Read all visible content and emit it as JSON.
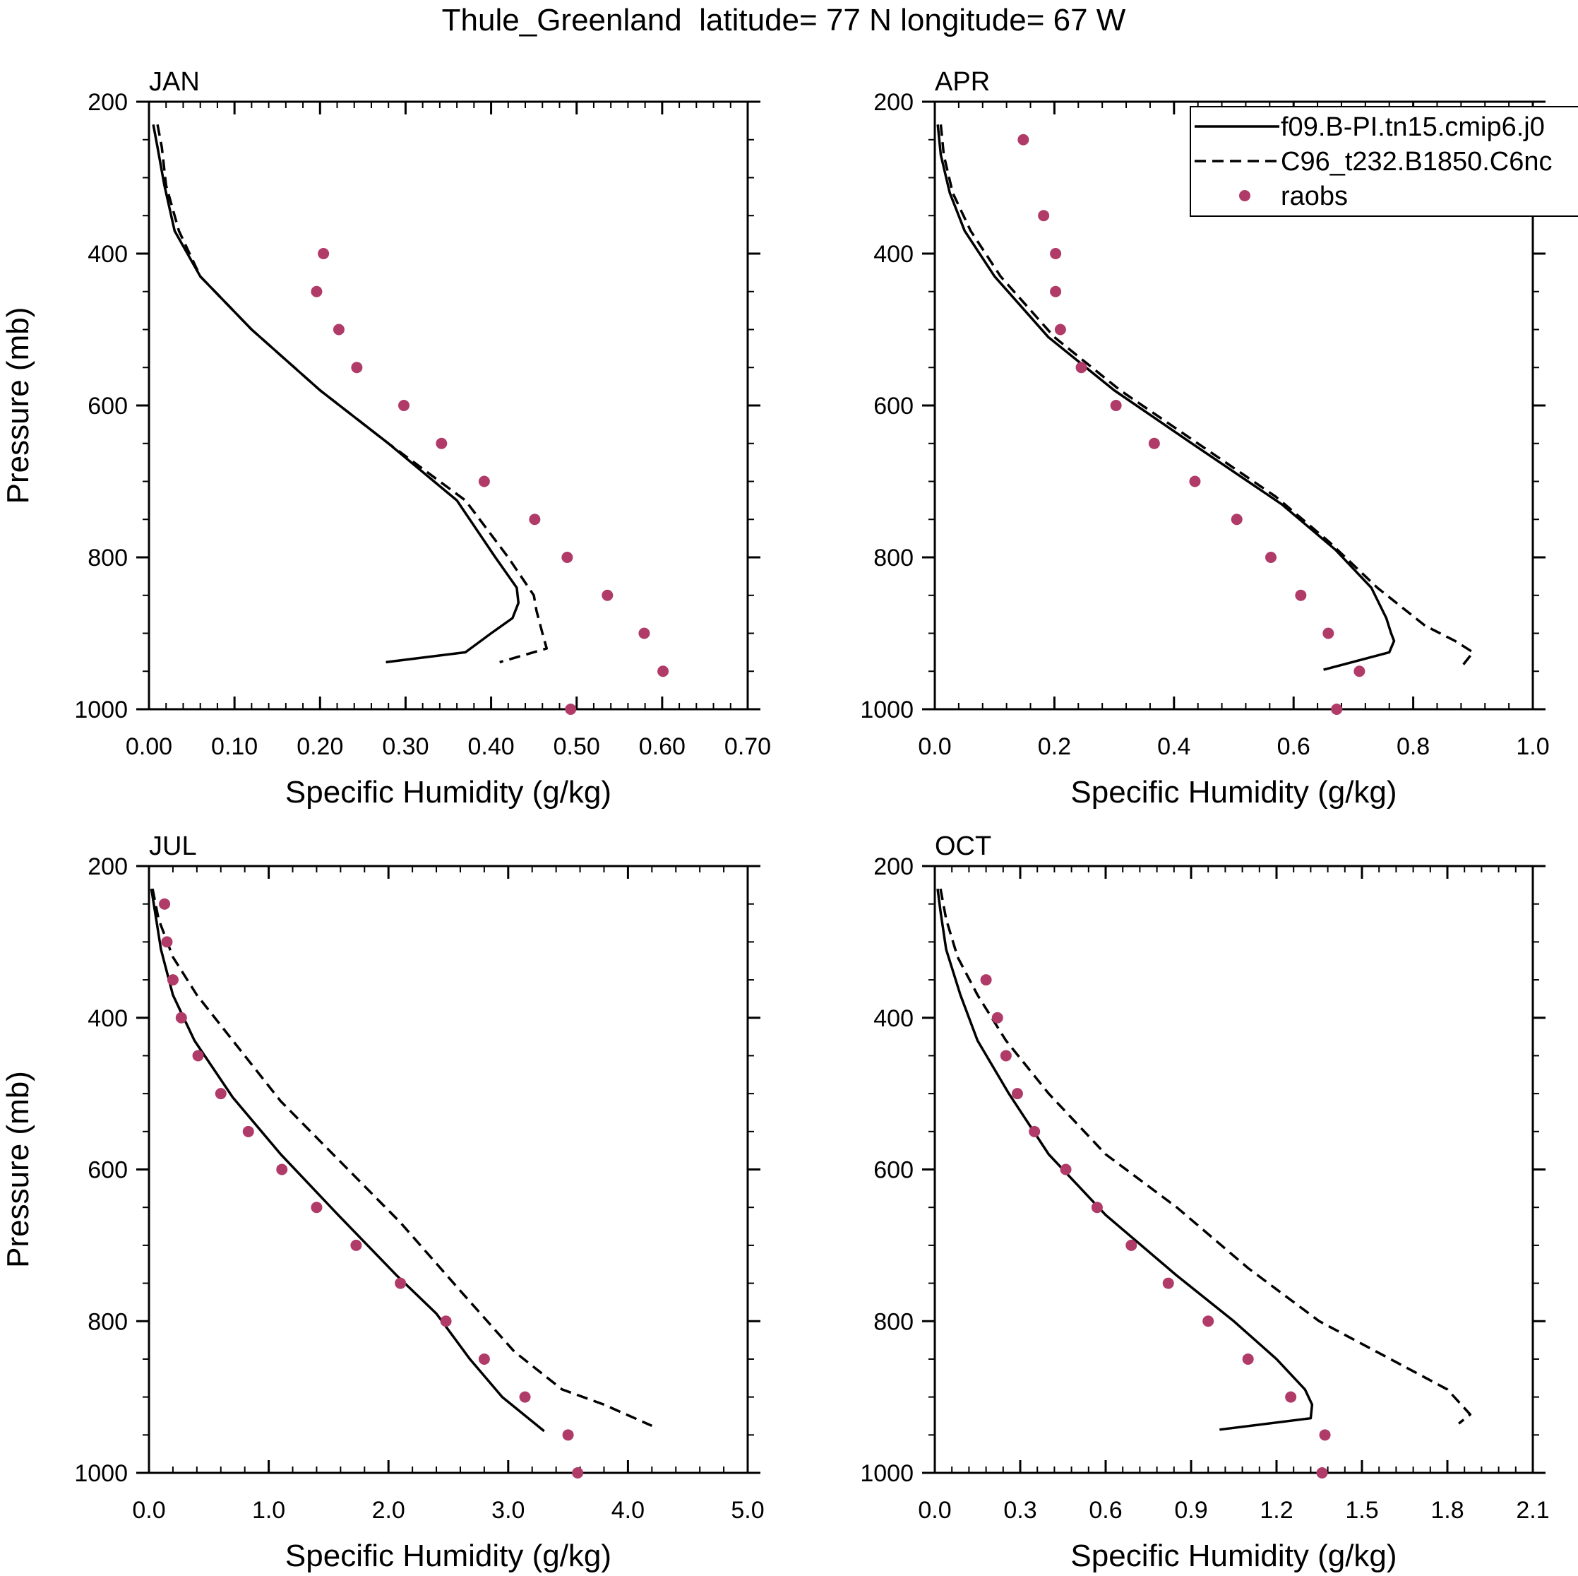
{
  "figure_title": "Thule_Greenland  latitude= 77 N longitude= 67 W",
  "legend": {
    "entries": [
      {
        "label": "f09.B-PI.tn15.cmip6.j0",
        "style": "solid"
      },
      {
        "label": "C96_t232.B1850.C6nc",
        "style": "dashed"
      },
      {
        "label": "raobs",
        "style": "marker"
      }
    ]
  },
  "colors": {
    "line": "#000000",
    "marker": "#b03a68",
    "background": "#ffffff"
  },
  "chart_data": [
    {
      "type": "line",
      "title": "JAN",
      "xlabel": "Specific Humidity (g/kg)",
      "ylabel": "Pressure (mb)",
      "xlim": [
        0,
        0.7
      ],
      "ylim": [
        200,
        1000
      ],
      "y_inverted": true,
      "xticks": [
        0,
        0.1,
        0.2,
        0.3,
        0.4,
        0.5,
        0.6,
        0.7
      ],
      "xtick_labels": [
        "0.00",
        "0.10",
        "0.20",
        "0.30",
        "0.40",
        "0.50",
        "0.60",
        "0.70"
      ],
      "yticks": [
        200,
        400,
        600,
        800,
        1000
      ],
      "ytick_labels": [
        "200",
        "400",
        "600",
        "800",
        "1000"
      ],
      "series": [
        {
          "name": "f09.B-PI.tn15.cmip6.j0",
          "style": "solid",
          "x": [
            0.005,
            0.01,
            0.018,
            0.03,
            0.06,
            0.12,
            0.2,
            0.28,
            0.36,
            0.405,
            0.43,
            0.432,
            0.425,
            0.4,
            0.37,
            0.277
          ],
          "y": [
            230,
            260,
            310,
            370,
            430,
            500,
            580,
            650,
            725,
            800,
            840,
            860,
            880,
            900,
            925,
            938
          ]
        },
        {
          "name": "C96_t232.B1850.C6nc",
          "style": "dashed",
          "x": [
            0.01,
            0.015,
            0.02,
            0.035,
            0.06,
            0.12,
            0.2,
            0.28,
            0.37,
            0.42,
            0.45,
            0.453,
            0.46,
            0.465,
            0.41
          ],
          "y": [
            230,
            260,
            310,
            370,
            430,
            500,
            580,
            650,
            725,
            800,
            850,
            870,
            900,
            920,
            938
          ]
        },
        {
          "name": "raobs",
          "style": "marker",
          "x": [
            0.204,
            0.196,
            0.222,
            0.243,
            0.298,
            0.342,
            0.392,
            0.451,
            0.489,
            0.536,
            0.579,
            0.601,
            0.493
          ],
          "y": [
            400,
            450,
            500,
            550,
            600,
            650,
            700,
            750,
            800,
            850,
            900,
            950,
            1000
          ]
        }
      ]
    },
    {
      "type": "line",
      "title": "APR",
      "xlabel": "Specific Humidity (g/kg)",
      "ylabel": "",
      "xlim": [
        0,
        1.0
      ],
      "ylim": [
        200,
        1000
      ],
      "y_inverted": true,
      "xticks": [
        0,
        0.2,
        0.4,
        0.6,
        0.8,
        1.0
      ],
      "xtick_labels": [
        "0.0",
        "0.2",
        "0.4",
        "0.6",
        "0.8",
        "1.0"
      ],
      "yticks": [
        200,
        400,
        600,
        800,
        1000
      ],
      "ytick_labels": [
        "200",
        "400",
        "600",
        "800",
        "1000"
      ],
      "series": [
        {
          "name": "f09.B-PI.tn15.cmip6.j0",
          "style": "solid",
          "x": [
            0.005,
            0.01,
            0.025,
            0.05,
            0.1,
            0.19,
            0.3,
            0.43,
            0.58,
            0.67,
            0.73,
            0.755,
            0.763,
            0.768,
            0.76,
            0.65
          ],
          "y": [
            230,
            270,
            320,
            370,
            430,
            510,
            580,
            650,
            730,
            790,
            840,
            880,
            900,
            910,
            925,
            948
          ]
        },
        {
          "name": "C96_t232.B1850.C6nc",
          "style": "dashed",
          "x": [
            0.01,
            0.015,
            0.03,
            0.06,
            0.11,
            0.2,
            0.31,
            0.44,
            0.57,
            0.66,
            0.74,
            0.82,
            0.87,
            0.9,
            0.89,
            0.88
          ],
          "y": [
            230,
            270,
            320,
            370,
            430,
            510,
            580,
            650,
            720,
            780,
            840,
            890,
            910,
            925,
            935,
            945
          ]
        },
        {
          "name": "raobs",
          "style": "marker",
          "x": [
            0.148,
            0.182,
            0.202,
            0.202,
            0.21,
            0.245,
            0.303,
            0.367,
            0.435,
            0.505,
            0.562,
            0.612,
            0.658,
            0.71,
            0.672
          ],
          "y": [
            250,
            350,
            400,
            450,
            500,
            550,
            600,
            650,
            700,
            750,
            800,
            850,
            900,
            950,
            1000
          ]
        }
      ]
    },
    {
      "type": "line",
      "title": "JUL",
      "xlabel": "Specific Humidity (g/kg)",
      "ylabel": "Pressure (mb)",
      "xlim": [
        0,
        5.0
      ],
      "ylim": [
        200,
        1000
      ],
      "y_inverted": true,
      "xticks": [
        0,
        1,
        2,
        3,
        4,
        5
      ],
      "xtick_labels": [
        "0.0",
        "1.0",
        "2.0",
        "3.0",
        "4.0",
        "5.0"
      ],
      "yticks": [
        200,
        400,
        600,
        800,
        1000
      ],
      "ytick_labels": [
        "200",
        "400",
        "600",
        "800",
        "1000"
      ],
      "series": [
        {
          "name": "f09.B-PI.tn15.cmip6.j0",
          "style": "solid",
          "x": [
            0.02,
            0.05,
            0.1,
            0.2,
            0.38,
            0.7,
            1.1,
            1.58,
            2.07,
            2.4,
            2.68,
            2.95,
            3.3
          ],
          "y": [
            230,
            260,
            310,
            370,
            430,
            505,
            580,
            660,
            740,
            790,
            850,
            900,
            945
          ]
        },
        {
          "name": "C96_t232.B1850.C6nc",
          "style": "dashed",
          "x": [
            0.03,
            0.08,
            0.2,
            0.4,
            0.7,
            1.1,
            1.6,
            2.1,
            2.6,
            3.05,
            3.45,
            3.8,
            4.2
          ],
          "y": [
            230,
            270,
            320,
            370,
            430,
            510,
            590,
            670,
            760,
            840,
            890,
            910,
            938
          ]
        },
        {
          "name": "raobs",
          "style": "marker",
          "x": [
            0.13,
            0.15,
            0.2,
            0.27,
            0.41,
            0.6,
            0.83,
            1.11,
            1.4,
            1.73,
            2.1,
            2.48,
            2.8,
            3.14,
            3.5,
            3.58
          ],
          "y": [
            250,
            300,
            350,
            400,
            450,
            500,
            550,
            600,
            650,
            700,
            750,
            800,
            850,
            900,
            950,
            1000
          ]
        }
      ]
    },
    {
      "type": "line",
      "title": "OCT",
      "xlabel": "Specific Humidity (g/kg)",
      "ylabel": "",
      "xlim": [
        0,
        2.1
      ],
      "ylim": [
        200,
        1000
      ],
      "y_inverted": true,
      "xticks": [
        0,
        0.3,
        0.6,
        0.9,
        1.2,
        1.5,
        1.8,
        2.1
      ],
      "xtick_labels": [
        "0.0",
        "0.3",
        "0.6",
        "0.9",
        "1.2",
        "1.5",
        "1.8",
        "2.1"
      ],
      "yticks": [
        200,
        400,
        600,
        800,
        1000
      ],
      "ytick_labels": [
        "200",
        "400",
        "600",
        "800",
        "1000"
      ],
      "series": [
        {
          "name": "f09.B-PI.tn15.cmip6.j0",
          "style": "solid",
          "x": [
            0.01,
            0.02,
            0.04,
            0.09,
            0.15,
            0.26,
            0.4,
            0.6,
            0.85,
            1.05,
            1.2,
            1.3,
            1.325,
            1.32,
            1.0
          ],
          "y": [
            230,
            260,
            310,
            370,
            430,
            500,
            580,
            660,
            740,
            800,
            850,
            890,
            910,
            928,
            943
          ]
        },
        {
          "name": "C96_t232.B1850.C6nc",
          "style": "dashed",
          "x": [
            0.02,
            0.04,
            0.08,
            0.15,
            0.25,
            0.4,
            0.6,
            0.85,
            1.1,
            1.35,
            1.6,
            1.8,
            1.88,
            1.84
          ],
          "y": [
            230,
            270,
            320,
            370,
            430,
            500,
            580,
            650,
            730,
            800,
            850,
            890,
            923,
            935
          ]
        },
        {
          "name": "raobs",
          "style": "marker",
          "x": [
            0.18,
            0.22,
            0.25,
            0.29,
            0.35,
            0.46,
            0.57,
            0.69,
            0.82,
            0.96,
            1.1,
            1.25,
            1.37,
            1.36
          ],
          "y": [
            350,
            400,
            450,
            500,
            550,
            600,
            650,
            700,
            750,
            800,
            850,
            900,
            950,
            1000
          ]
        }
      ]
    }
  ]
}
